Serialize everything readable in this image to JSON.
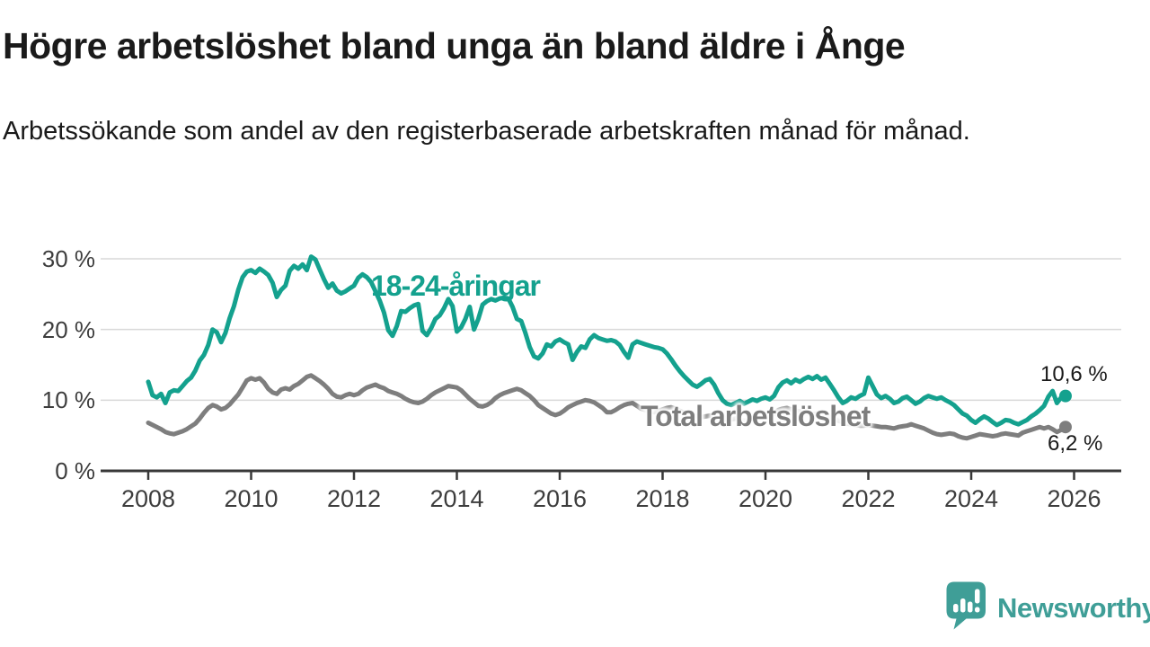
{
  "title": "Högre arbetslöshet bland unga än bland äldre i Ånge",
  "subtitle": "Arbetssökande som andel av den registerbaserade arbetskraften månad för månad.",
  "colors": {
    "accent_teal": "#14a18e",
    "line_gray": "#7e7e7e",
    "axis": "#383838",
    "tick_text": "#3d3d3d",
    "gridline": "#d9d9d9",
    "title_text": "#1a1a1a",
    "logo_teal": "#3f9e97"
  },
  "branding": {
    "name": "Newsworthy",
    "logo_icon": "speech-bubble-bar-chart-exclamation"
  },
  "chart_data": {
    "type": "line",
    "x_start": "2008-01",
    "x_end": "2025-11",
    "frequency": "monthly",
    "grid": "horizontal",
    "ylim": [
      0,
      33
    ],
    "xlim_years": [
      2007.9,
      2026.9
    ],
    "x_ticks": [
      2008,
      2010,
      2012,
      2014,
      2016,
      2018,
      2020,
      2022,
      2024,
      2026
    ],
    "x_tick_labels": [
      "2008",
      "2010",
      "2012",
      "2014",
      "2016",
      "2018",
      "2020",
      "2022",
      "2024",
      "2026"
    ],
    "y_ticks": [
      {
        "value": 0,
        "label": "0 %"
      },
      {
        "value": 10,
        "label": "10 %"
      },
      {
        "value": 20,
        "label": "20 %"
      },
      {
        "value": 30,
        "label": "30 %"
      }
    ],
    "series": [
      {
        "name": "Total arbetslöshet",
        "color": "#7e7e7e",
        "end_label": "6,2 %",
        "end_value": 6.2,
        "values": [
          6.8,
          6.5,
          6.2,
          5.9,
          5.5,
          5.3,
          5.2,
          5.4,
          5.6,
          5.9,
          6.3,
          6.7,
          7.4,
          8.2,
          8.9,
          9.3,
          9.1,
          8.7,
          8.9,
          9.4,
          10.1,
          10.8,
          11.8,
          12.8,
          13.1,
          12.9,
          13.1,
          12.5,
          11.6,
          11.1,
          10.9,
          11.5,
          11.7,
          11.5,
          12.0,
          12.3,
          12.8,
          13.3,
          13.5,
          13.1,
          12.7,
          12.2,
          11.6,
          10.9,
          10.5,
          10.4,
          10.7,
          10.9,
          10.7,
          10.9,
          11.4,
          11.8,
          12.0,
          12.2,
          11.9,
          11.7,
          11.3,
          11.1,
          10.9,
          10.6,
          10.2,
          9.9,
          9.7,
          9.6,
          9.8,
          10.2,
          10.7,
          11.1,
          11.4,
          11.7,
          12.0,
          11.9,
          11.8,
          11.4,
          10.8,
          10.2,
          9.7,
          9.2,
          9.1,
          9.3,
          9.7,
          10.3,
          10.7,
          11.0,
          11.2,
          11.4,
          11.6,
          11.4,
          11.0,
          10.6,
          10.0,
          9.3,
          8.9,
          8.5,
          8.1,
          7.9,
          8.1,
          8.5,
          9.0,
          9.3,
          9.6,
          9.8,
          10.0,
          9.9,
          9.7,
          9.3,
          8.9,
          8.3,
          8.3,
          8.6,
          9.0,
          9.3,
          9.5,
          9.6,
          9.2,
          8.8,
          8.6,
          8.4,
          8.3,
          8.5,
          8.7,
          8.9,
          9.0,
          8.8,
          8.5,
          8.2,
          8.0,
          7.8,
          7.7,
          7.6,
          7.7,
          7.8,
          7.9,
          7.7,
          7.5,
          7.4,
          7.3,
          7.4,
          7.2,
          7.1,
          7.2,
          7.3,
          7.4,
          7.5,
          7.7,
          7.8,
          8.1,
          8.6,
          8.8,
          8.9,
          8.7,
          8.5,
          8.4,
          8.2,
          8.1,
          8.0,
          8.1,
          8.0,
          7.8,
          7.6,
          7.4,
          7.1,
          6.9,
          6.7,
          6.6,
          6.5,
          6.4,
          6.4,
          6.5,
          6.4,
          6.3,
          6.2,
          6.2,
          6.1,
          6.0,
          6.2,
          6.3,
          6.4,
          6.6,
          6.4,
          6.2,
          6.0,
          5.7,
          5.4,
          5.2,
          5.1,
          5.2,
          5.3,
          5.2,
          4.9,
          4.7,
          4.6,
          4.8,
          5.0,
          5.2,
          5.1,
          5.0,
          4.9,
          5.0,
          5.2,
          5.3,
          5.2,
          5.1,
          5.0,
          5.4,
          5.6,
          5.8,
          6.0,
          6.2,
          6.0,
          6.2,
          5.9,
          5.5,
          5.8,
          6.2
        ]
      },
      {
        "name": "18-24-åringar",
        "color": "#14a18e",
        "end_label": "10,6 %",
        "end_value": 10.6,
        "values": [
          12.6,
          10.7,
          10.4,
          10.9,
          9.6,
          11.1,
          11.4,
          11.3,
          12.0,
          12.7,
          13.2,
          14.2,
          15.6,
          16.4,
          17.8,
          20.0,
          19.6,
          18.2,
          19.5,
          21.6,
          23.3,
          25.6,
          27.4,
          28.2,
          28.4,
          28.0,
          28.6,
          28.2,
          27.7,
          26.6,
          24.6,
          25.6,
          26.2,
          28.3,
          29.0,
          28.6,
          29.2,
          28.4,
          30.3,
          29.9,
          28.5,
          27.1,
          25.9,
          26.5,
          25.5,
          25.1,
          25.4,
          25.8,
          26.2,
          27.3,
          27.8,
          27.4,
          26.7,
          25.4,
          24.1,
          22.4,
          19.9,
          19.1,
          20.5,
          22.6,
          22.5,
          23.0,
          23.4,
          23.6,
          19.8,
          19.2,
          20.2,
          21.5,
          22.0,
          23.0,
          24.3,
          23.3,
          19.7,
          20.3,
          21.5,
          23.2,
          20.0,
          21.5,
          23.5,
          24.0,
          24.3,
          24.1,
          24.4,
          24.5,
          24.4,
          23.2,
          21.5,
          21.2,
          19.5,
          17.5,
          16.2,
          15.9,
          16.6,
          17.9,
          17.6,
          18.3,
          18.6,
          18.2,
          17.9,
          15.7,
          16.8,
          17.6,
          17.4,
          18.6,
          19.2,
          18.8,
          18.6,
          18.4,
          18.5,
          18.3,
          17.8,
          16.8,
          16.0,
          17.9,
          18.3,
          18.1,
          17.9,
          17.7,
          17.5,
          17.4,
          17.2,
          16.6,
          15.8,
          14.9,
          14.1,
          13.4,
          12.8,
          12.2,
          11.9,
          12.3,
          12.8,
          13.0,
          12.2,
          11.0,
          10.0,
          9.5,
          9.3,
          9.6,
          9.9,
          9.5,
          9.8,
          10.1,
          9.9,
          10.2,
          10.4,
          10.1,
          10.6,
          11.8,
          12.5,
          12.8,
          12.4,
          12.9,
          12.6,
          13.0,
          13.3,
          13.0,
          13.4,
          12.9,
          13.2,
          12.3,
          11.4,
          10.4,
          9.6,
          9.9,
          10.4,
          10.2,
          10.6,
          10.9,
          13.2,
          12.0,
          10.8,
          10.3,
          10.6,
          10.2,
          9.6,
          9.8,
          10.3,
          10.5,
          10.0,
          9.5,
          9.8,
          10.3,
          10.6,
          10.4,
          10.2,
          10.4,
          10.0,
          9.7,
          9.3,
          8.7,
          8.1,
          7.8,
          7.2,
          6.8,
          7.3,
          7.7,
          7.4,
          6.9,
          6.5,
          6.8,
          7.2,
          7.1,
          6.8,
          6.6,
          6.9,
          7.2,
          7.7,
          8.1,
          8.6,
          9.2,
          10.5,
          11.3,
          9.6,
          10.4,
          10.6
        ]
      }
    ]
  }
}
